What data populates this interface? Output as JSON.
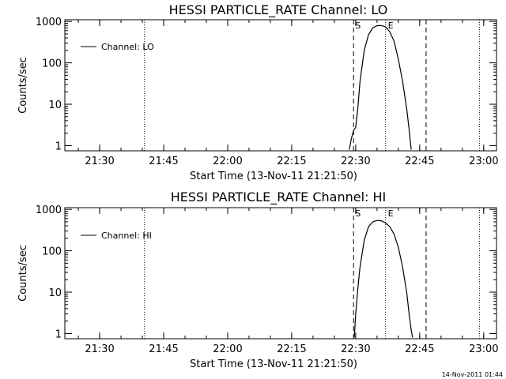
{
  "chart_data": [
    {
      "type": "line",
      "title": "HESSI PARTICLE_RATE Channel: LO",
      "xlabel": "Start Time (13-Nov-11 21:21:50)",
      "ylabel": "Counts/sec",
      "y_scale": "log",
      "xlim": [
        "21:21:50",
        "23:03:00"
      ],
      "ylim": [
        0.75,
        1100
      ],
      "x_ticks": [
        "21:30",
        "21:45",
        "22:00",
        "22:15",
        "22:30",
        "22:45",
        "23:00"
      ],
      "y_ticks": [
        "1",
        "10",
        "100",
        "1000"
      ],
      "legend": {
        "position": "top-left",
        "entries": [
          "Channel: LO"
        ]
      },
      "series": [
        {
          "name": "Channel: LO",
          "x": [
            "22:28:30",
            "22:29:00",
            "22:29:30",
            "22:30:00",
            "22:30:30",
            "22:31:00",
            "22:32:00",
            "22:33:00",
            "22:34:00",
            "22:35:00",
            "22:36:00",
            "22:37:00",
            "22:38:00",
            "22:39:00",
            "22:40:00",
            "22:41:00",
            "22:42:00",
            "22:42:30",
            "22:43:00"
          ],
          "y": [
            0.8,
            1.5,
            2.3,
            2.8,
            8,
            35,
            200,
            480,
            700,
            790,
            800,
            740,
            560,
            330,
            120,
            35,
            7,
            2.5,
            0.8
          ]
        }
      ],
      "vlines_dashed": [
        {
          "x": "22:29:30",
          "label": "S"
        },
        {
          "x": "22:46:30",
          "label": ""
        }
      ],
      "vlines_dotted": [
        {
          "x": "21:40:30",
          "label": ""
        },
        {
          "x": "22:37:00",
          "label": "E"
        },
        {
          "x": "22:59:00",
          "label": ""
        }
      ]
    },
    {
      "type": "line",
      "title": "HESSI PARTICLE_RATE Channel: HI",
      "xlabel": "Start Time (13-Nov-11 21:21:50)",
      "ylabel": "Counts/sec",
      "y_scale": "log",
      "xlim": [
        "21:21:50",
        "23:03:00"
      ],
      "ylim": [
        0.75,
        1100
      ],
      "x_ticks": [
        "21:30",
        "21:45",
        "22:00",
        "22:15",
        "22:30",
        "22:45",
        "23:00"
      ],
      "y_ticks": [
        "1",
        "10",
        "100",
        "1000"
      ],
      "legend": {
        "position": "top-left",
        "entries": [
          "Channel: HI"
        ]
      },
      "series": [
        {
          "name": "Channel: HI",
          "x": [
            "22:29:40",
            "22:30:00",
            "22:30:30",
            "22:31:00",
            "22:32:00",
            "22:33:00",
            "22:34:00",
            "22:35:00",
            "22:36:00",
            "22:37:00",
            "22:38:00",
            "22:39:00",
            "22:40:00",
            "22:41:00",
            "22:42:00",
            "22:42:30",
            "22:43:00",
            "22:43:20"
          ],
          "y": [
            0.8,
            3,
            12,
            40,
            180,
            380,
            500,
            540,
            530,
            470,
            380,
            250,
            120,
            40,
            9,
            3,
            1.2,
            0.8
          ]
        }
      ],
      "vlines_dashed": [
        {
          "x": "22:29:30",
          "label": "S"
        },
        {
          "x": "22:46:30",
          "label": ""
        }
      ],
      "vlines_dotted": [
        {
          "x": "21:40:30",
          "label": ""
        },
        {
          "x": "22:37:00",
          "label": "E"
        },
        {
          "x": "22:59:00",
          "label": ""
        }
      ]
    }
  ],
  "footer": {
    "timestamp": "14-Nov-2011 01:44"
  }
}
